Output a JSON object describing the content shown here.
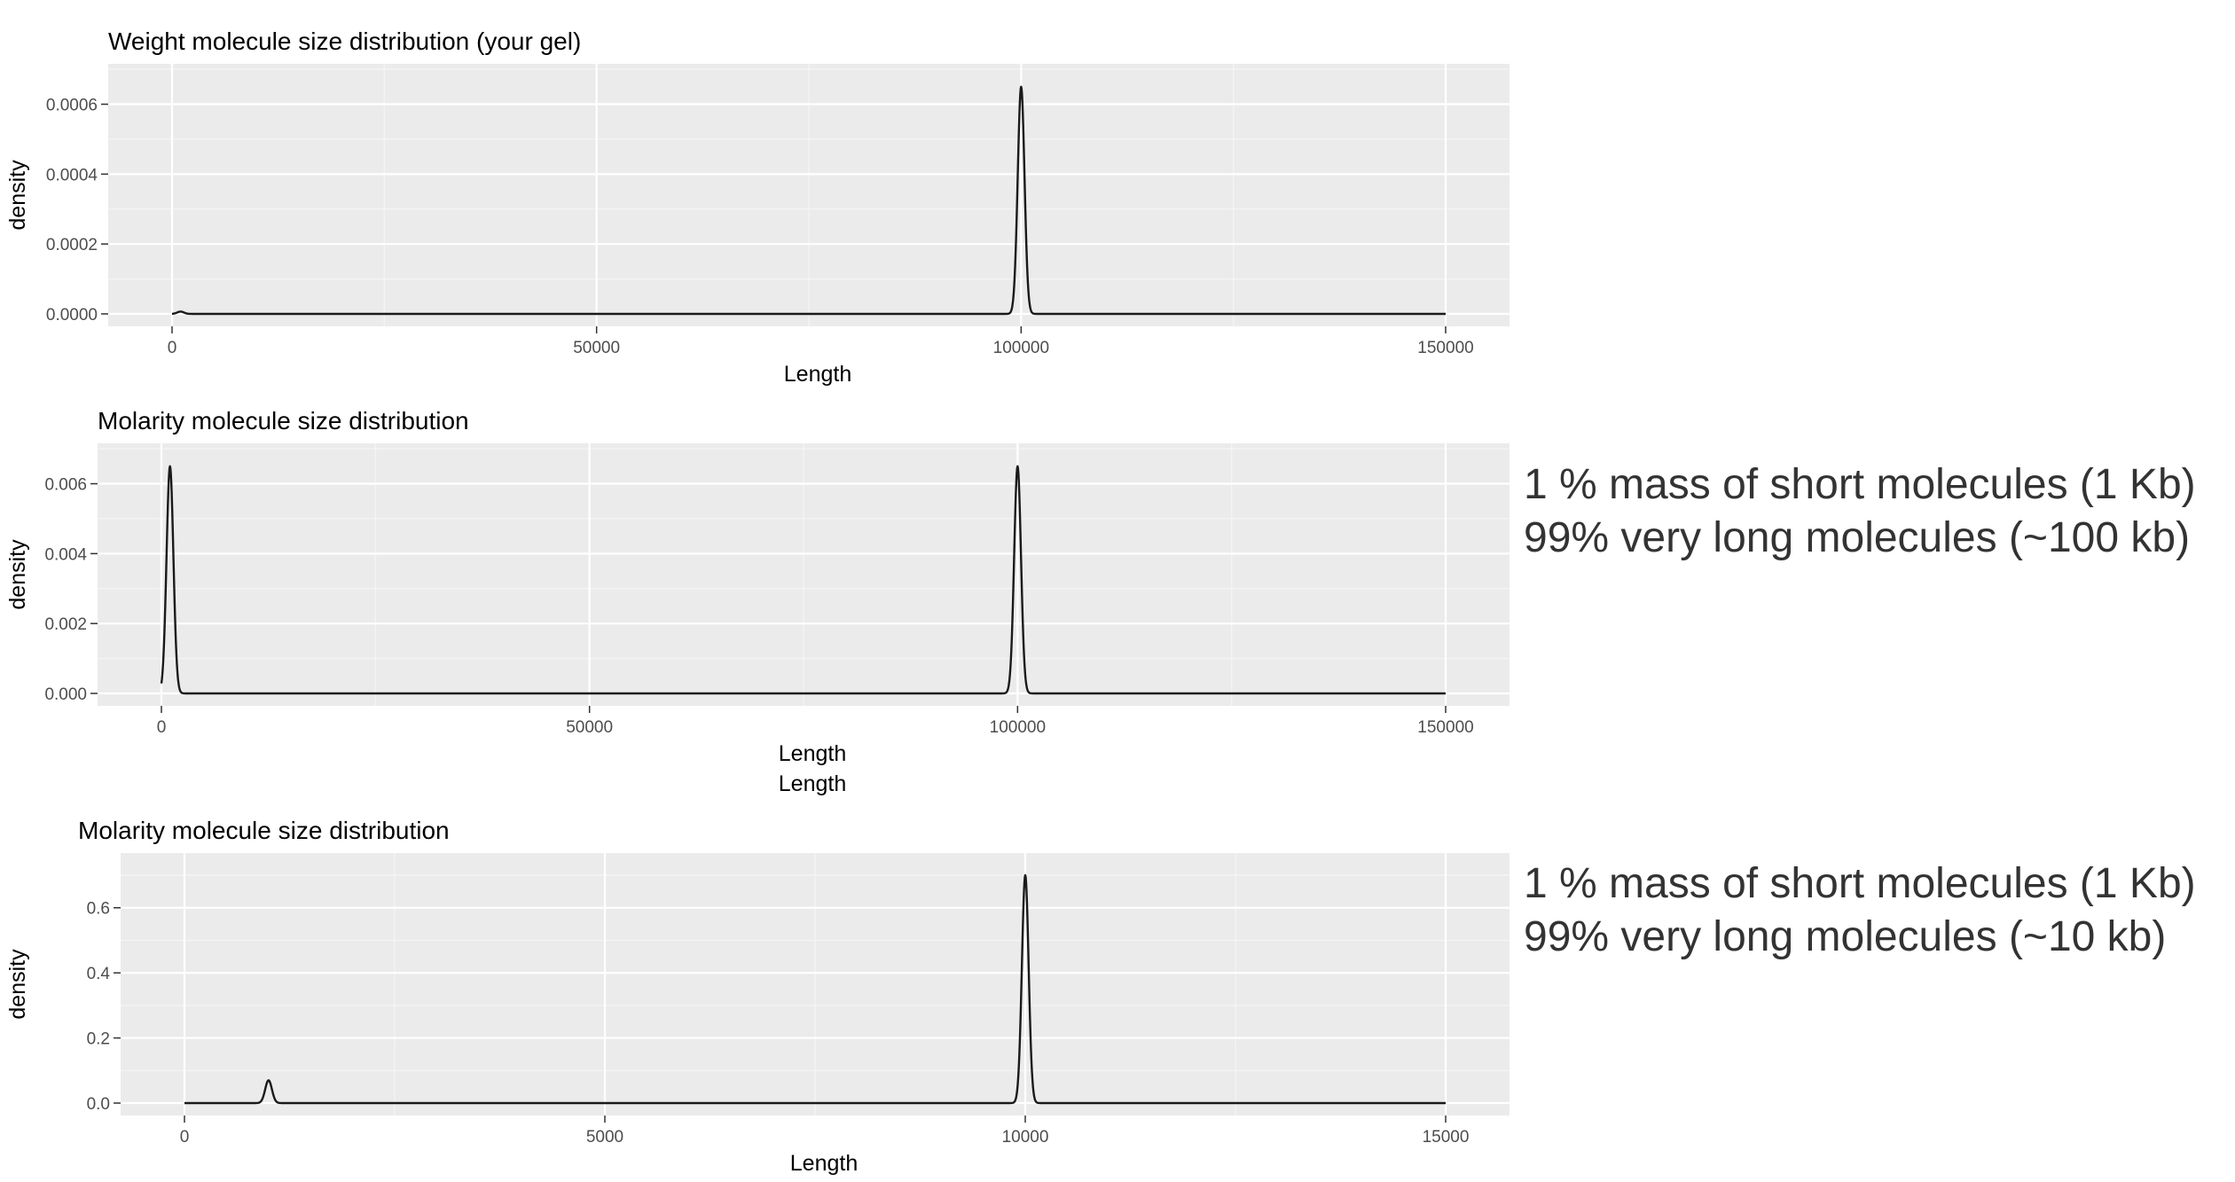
{
  "chart_data": [
    {
      "type": "line",
      "title": "Weight molecule size distribution (your gel)",
      "xlabel": "Length",
      "xlabel_extra": "",
      "ylabel": "density",
      "xlim": [
        0,
        150000
      ],
      "ylim": [
        0,
        0.00068
      ],
      "x_ticks": [
        "0",
        "50000",
        "100000",
        "150000"
      ],
      "x_tick_values": [
        0,
        50000,
        100000,
        150000
      ],
      "y_ticks": [
        "0.0000",
        "0.0002",
        "0.0004",
        "0.0006"
      ],
      "y_tick_values": [
        0,
        0.0002,
        0.0004,
        0.0006
      ],
      "grid": true,
      "series": [
        {
          "peaks": [
            {
              "center": 1000,
              "height": 6.6e-06,
              "width": 1000
            },
            {
              "center": 100000,
              "height": 0.00065,
              "width": 1000
            }
          ]
        }
      ]
    },
    {
      "type": "line",
      "title": "Molarity molecule size distribution",
      "xlabel": "Length",
      "xlabel_extra": "Length",
      "ylabel": "density",
      "xlim": [
        0,
        150000
      ],
      "ylim": [
        0,
        0.0068
      ],
      "x_ticks": [
        "0",
        "50000",
        "100000",
        "150000"
      ],
      "x_tick_values": [
        0,
        50000,
        100000,
        150000
      ],
      "y_ticks": [
        "0.000",
        "0.002",
        "0.004",
        "0.006"
      ],
      "y_tick_values": [
        0,
        0.002,
        0.004,
        0.006
      ],
      "grid": true,
      "series": [
        {
          "peaks": [
            {
              "center": 1000,
              "height": 0.0065,
              "width": 1000
            },
            {
              "center": 100000,
              "height": 0.0065,
              "width": 1000
            }
          ]
        }
      ]
    },
    {
      "type": "line",
      "title": "Molarity molecule size distribution",
      "xlabel": "Length",
      "xlabel_extra": "",
      "ylabel": "density",
      "xlim": [
        0,
        15000
      ],
      "ylim": [
        0,
        0.73
      ],
      "x_ticks": [
        "0",
        "5000",
        "10000",
        "15000"
      ],
      "x_tick_values": [
        0,
        5000,
        10000,
        15000
      ],
      "y_ticks": [
        "0.0",
        "0.2",
        "0.4",
        "0.6"
      ],
      "y_tick_values": [
        0,
        0.2,
        0.4,
        0.6
      ],
      "grid": true,
      "series": [
        {
          "peaks": [
            {
              "center": 1000,
              "height": 0.07,
              "width": 100
            },
            {
              "center": 10000,
              "height": 0.7,
              "width": 100
            }
          ]
        }
      ]
    }
  ],
  "annotations": [
    {
      "line1": "1 % mass of short molecules (1 Kb)",
      "line2": "99% very long molecules (~100 kb)"
    },
    {
      "line1": "1 % mass of short molecules (1 Kb)",
      "line2": "99% very long molecules (~10 kb)"
    }
  ],
  "colors": {
    "panel_bg": "#ebebeb",
    "grid_major": "#ffffff",
    "line": "#1a1a1a",
    "tick_text": "#4d4d4d",
    "title_text": "#000000"
  }
}
